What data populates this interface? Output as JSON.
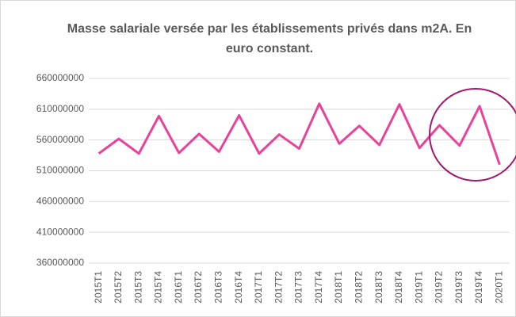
{
  "chart_data": {
    "type": "line",
    "title": "Masse salariale versée par les établissements privés dans m2A. En euro constant.",
    "categories": [
      "2015T1",
      "2015T2",
      "2015T3",
      "2015T4",
      "2016T1",
      "2016T2",
      "2016T3",
      "2016T4",
      "2017T1",
      "2017T2",
      "2017T3",
      "2017T4",
      "2018T1",
      "2018T2",
      "2018T3",
      "2018T4",
      "2019T1",
      "2019T2",
      "2019T3",
      "2019T4",
      "2020T1"
    ],
    "series": [
      {
        "name": "Masse salariale",
        "color": "#e8439a",
        "values": [
          538000000,
          562000000,
          538000000,
          599000000,
          539000000,
          570000000,
          541000000,
          600000000,
          538000000,
          569000000,
          546000000,
          619000000,
          554000000,
          583000000,
          552000000,
          618000000,
          547000000,
          584000000,
          551000000,
          615000000,
          520000000
        ]
      }
    ],
    "ylim": [
      360000000,
      660000000
    ],
    "yticks": [
      360000000,
      410000000,
      460000000,
      510000000,
      560000000,
      610000000,
      660000000
    ],
    "grid": true
  }
}
